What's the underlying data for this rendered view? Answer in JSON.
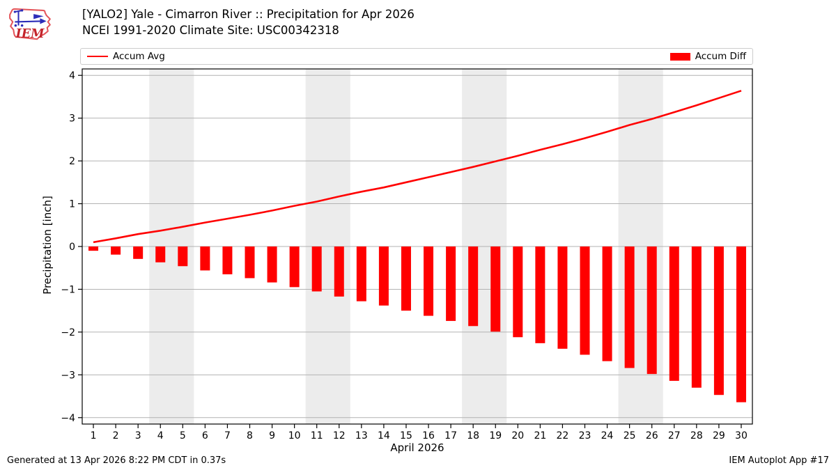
{
  "header": {
    "logo_text": "IEM"
  },
  "legend": {
    "accum_avg_label": "Accum Avg",
    "accum_diff_label": "Accum Diff"
  },
  "footer": {
    "left": "Generated at 13 Apr 2026 8:22 PM CDT in 0.37s",
    "right": "IEM Autoplot App #17"
  },
  "colors": {
    "series_red": "#ff0000",
    "grid": "#b2b2b2",
    "weekend_band": "#ececec",
    "frame": "#000000",
    "legend_border": "#cccccc",
    "logo_outline_red": "#e4555a",
    "logo_text_red": "#c3242b",
    "logo_blue": "#2d2db8"
  },
  "chart_data": {
    "type": "bar",
    "title": "[YALO2] Yale - Cimarron River :: Precipitation for Apr 2026",
    "subtitle": "NCEI 1991-2020 Climate Site: USC00342318",
    "xlabel": "April 2026",
    "ylabel": "Precipitation [inch]",
    "categories": [
      1,
      2,
      3,
      4,
      5,
      6,
      7,
      8,
      9,
      10,
      11,
      12,
      13,
      14,
      15,
      16,
      17,
      18,
      19,
      20,
      21,
      22,
      23,
      24,
      25,
      26,
      27,
      28,
      29,
      30
    ],
    "series": [
      {
        "name": "Accum Avg",
        "type": "line",
        "color": "#ff0000",
        "values": [
          0.1,
          0.19,
          0.29,
          0.37,
          0.46,
          0.56,
          0.65,
          0.74,
          0.84,
          0.95,
          1.05,
          1.17,
          1.28,
          1.38,
          1.5,
          1.62,
          1.74,
          1.86,
          1.99,
          2.12,
          2.26,
          2.39,
          2.53,
          2.68,
          2.84,
          2.98,
          3.14,
          3.3,
          3.47,
          3.64
        ]
      },
      {
        "name": "Accum Diff",
        "type": "bar",
        "color": "#ff0000",
        "values": [
          -0.1,
          -0.19,
          -0.29,
          -0.37,
          -0.46,
          -0.56,
          -0.65,
          -0.74,
          -0.84,
          -0.95,
          -1.05,
          -1.17,
          -1.28,
          -1.38,
          -1.5,
          -1.62,
          -1.74,
          -1.86,
          -1.99,
          -2.12,
          -2.26,
          -2.39,
          -2.53,
          -2.68,
          -2.84,
          -2.98,
          -3.14,
          -3.3,
          -3.47,
          -3.64
        ]
      }
    ],
    "yticks": [
      -4,
      -3,
      -2,
      -1,
      0,
      1,
      2,
      3,
      4
    ],
    "ylim": [
      -4.15,
      4.15
    ],
    "xlim": [
      0.5,
      30.5
    ],
    "weekend_bands": [
      [
        3.5,
        5.5
      ],
      [
        10.5,
        12.5
      ],
      [
        17.5,
        19.5
      ],
      [
        24.5,
        26.5
      ]
    ],
    "grid": true,
    "legend_position": "top"
  }
}
